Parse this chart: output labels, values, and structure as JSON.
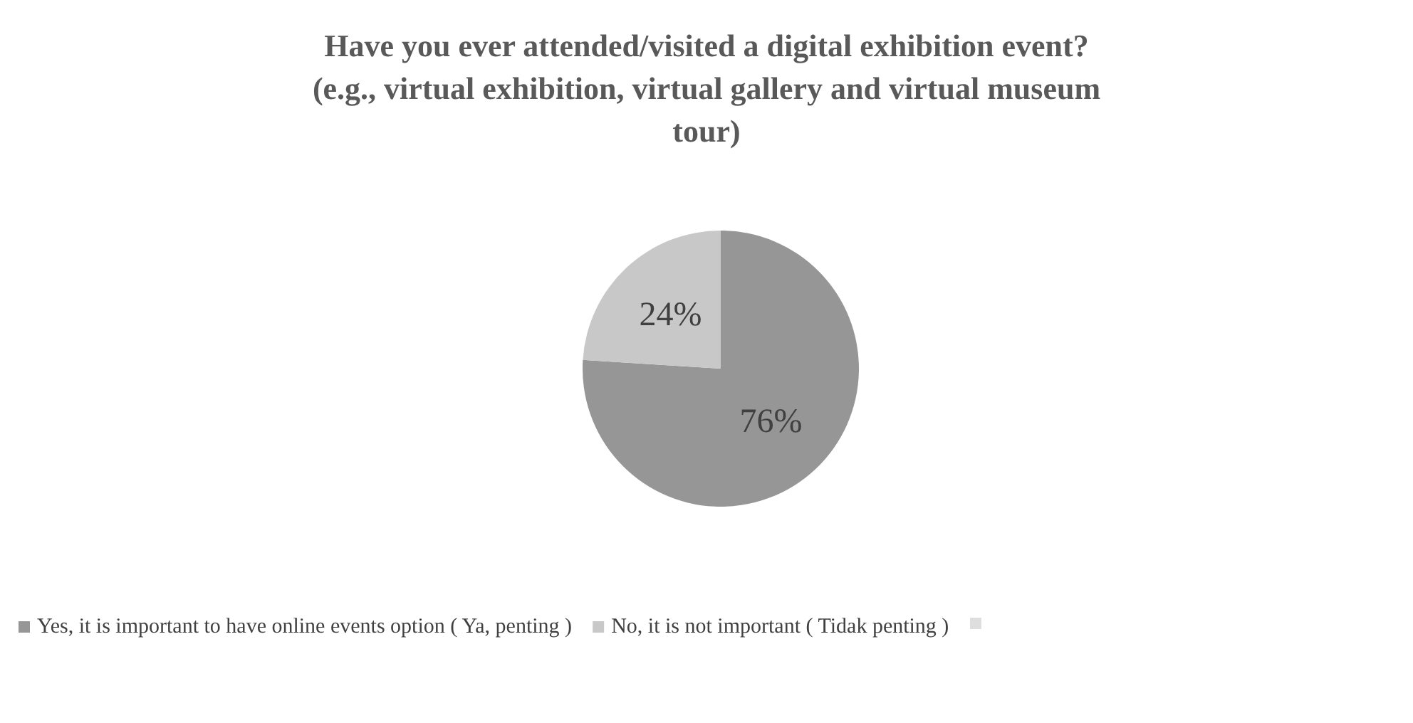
{
  "chart_data": {
    "type": "pie",
    "title": "Have you ever attended/visited a digital exhibition event?\n(e.g., virtual exhibition, virtual gallery and virtual museum\ntour)",
    "categories": [
      "Yes, it is important to have online events option ( Ya, penting )",
      "No, it is not important ( Tidak penting )"
    ],
    "values": [
      76,
      24
    ],
    "colors": [
      "#969696",
      "#c8c8c8"
    ],
    "value_labels": [
      "76%",
      "24%"
    ],
    "legend": "bottom"
  }
}
